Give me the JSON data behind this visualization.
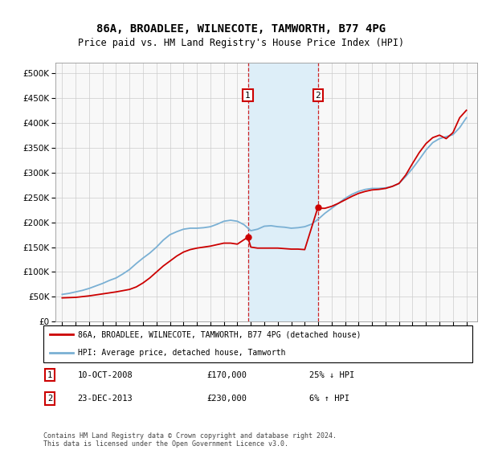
{
  "title": "86A, BROADLEE, WILNECOTE, TAMWORTH, B77 4PG",
  "subtitle": "Price paid vs. HM Land Registry's House Price Index (HPI)",
  "legend_line1": "86A, BROADLEE, WILNECOTE, TAMWORTH, B77 4PG (detached house)",
  "legend_line2": "HPI: Average price, detached house, Tamworth",
  "annotation1_label": "1",
  "annotation1_date": "10-OCT-2008",
  "annotation1_price": "£170,000",
  "annotation1_hpi": "25% ↓ HPI",
  "annotation2_label": "2",
  "annotation2_date": "23-DEC-2013",
  "annotation2_price": "£230,000",
  "annotation2_hpi": "6% ↑ HPI",
  "footer": "Contains HM Land Registry data © Crown copyright and database right 2024.\nThis data is licensed under the Open Government Licence v3.0.",
  "sale1_year": 2008.78,
  "sale1_price": 170000,
  "sale2_year": 2013.98,
  "sale2_price": 230000,
  "hpi_color": "#7ab0d4",
  "price_color": "#cc0000",
  "shade_color": "#ddeef8",
  "ylim": [
    0,
    520000
  ],
  "yticks": [
    0,
    50000,
    100000,
    150000,
    200000,
    250000,
    300000,
    350000,
    400000,
    450000,
    500000
  ],
  "xlim_start": 1994.5,
  "xlim_end": 2025.8,
  "hpi_data": [
    [
      1995,
      55000
    ],
    [
      1995.5,
      57000
    ],
    [
      1996,
      60000
    ],
    [
      1996.5,
      63000
    ],
    [
      1997,
      67000
    ],
    [
      1997.5,
      72000
    ],
    [
      1998,
      77000
    ],
    [
      1998.5,
      83000
    ],
    [
      1999,
      88000
    ],
    [
      1999.5,
      96000
    ],
    [
      2000,
      105000
    ],
    [
      2000.5,
      117000
    ],
    [
      2001,
      128000
    ],
    [
      2001.5,
      138000
    ],
    [
      2002,
      150000
    ],
    [
      2002.5,
      164000
    ],
    [
      2003,
      175000
    ],
    [
      2003.5,
      181000
    ],
    [
      2004,
      186000
    ],
    [
      2004.5,
      188000
    ],
    [
      2005,
      188000
    ],
    [
      2005.5,
      189000
    ],
    [
      2006,
      191000
    ],
    [
      2006.5,
      196000
    ],
    [
      2007,
      202000
    ],
    [
      2007.5,
      204000
    ],
    [
      2008,
      202000
    ],
    [
      2008.5,
      195000
    ],
    [
      2009,
      183000
    ],
    [
      2009.5,
      186000
    ],
    [
      2010,
      192000
    ],
    [
      2010.5,
      193000
    ],
    [
      2011,
      191000
    ],
    [
      2011.5,
      190000
    ],
    [
      2012,
      188000
    ],
    [
      2012.5,
      189000
    ],
    [
      2013,
      191000
    ],
    [
      2013.5,
      196000
    ],
    [
      2014,
      206000
    ],
    [
      2014.5,
      218000
    ],
    [
      2015,
      228000
    ],
    [
      2015.5,
      238000
    ],
    [
      2016,
      248000
    ],
    [
      2016.5,
      256000
    ],
    [
      2017,
      262000
    ],
    [
      2017.5,
      266000
    ],
    [
      2018,
      268000
    ],
    [
      2018.5,
      268000
    ],
    [
      2019,
      269000
    ],
    [
      2019.5,
      272000
    ],
    [
      2020,
      278000
    ],
    [
      2020.5,
      292000
    ],
    [
      2021,
      308000
    ],
    [
      2021.5,
      326000
    ],
    [
      2022,
      345000
    ],
    [
      2022.5,
      360000
    ],
    [
      2023,
      368000
    ],
    [
      2023.5,
      372000
    ],
    [
      2024,
      376000
    ],
    [
      2024.5,
      390000
    ],
    [
      2025,
      410000
    ]
  ],
  "price_data": [
    [
      1995,
      48000
    ],
    [
      1996,
      49000
    ],
    [
      1997,
      52000
    ],
    [
      1998,
      56000
    ],
    [
      1999,
      60000
    ],
    [
      2000,
      65000
    ],
    [
      2000.5,
      70000
    ],
    [
      2001,
      78000
    ],
    [
      2001.5,
      88000
    ],
    [
      2002,
      100000
    ],
    [
      2002.5,
      112000
    ],
    [
      2003,
      122000
    ],
    [
      2003.5,
      132000
    ],
    [
      2004,
      140000
    ],
    [
      2004.5,
      145000
    ],
    [
      2005,
      148000
    ],
    [
      2005.5,
      150000
    ],
    [
      2006,
      152000
    ],
    [
      2006.5,
      155000
    ],
    [
      2007,
      158000
    ],
    [
      2007.5,
      158000
    ],
    [
      2008,
      156000
    ],
    [
      2008.78,
      170000
    ],
    [
      2009,
      150000
    ],
    [
      2009.5,
      148000
    ],
    [
      2010,
      148000
    ],
    [
      2010.5,
      148000
    ],
    [
      2011,
      148000
    ],
    [
      2011.5,
      147000
    ],
    [
      2012,
      146000
    ],
    [
      2012.5,
      146000
    ],
    [
      2013,
      145000
    ],
    [
      2013.98,
      230000
    ],
    [
      2014,
      228000
    ],
    [
      2014.5,
      228000
    ],
    [
      2015,
      232000
    ],
    [
      2015.5,
      238000
    ],
    [
      2016,
      245000
    ],
    [
      2016.5,
      252000
    ],
    [
      2017,
      258000
    ],
    [
      2017.5,
      262000
    ],
    [
      2018,
      265000
    ],
    [
      2018.5,
      266000
    ],
    [
      2019,
      268000
    ],
    [
      2019.5,
      272000
    ],
    [
      2020,
      278000
    ],
    [
      2020.5,
      295000
    ],
    [
      2021,
      318000
    ],
    [
      2021.5,
      340000
    ],
    [
      2022,
      358000
    ],
    [
      2022.5,
      370000
    ],
    [
      2023,
      375000
    ],
    [
      2023.5,
      368000
    ],
    [
      2024,
      380000
    ],
    [
      2024.5,
      410000
    ],
    [
      2025,
      425000
    ]
  ]
}
